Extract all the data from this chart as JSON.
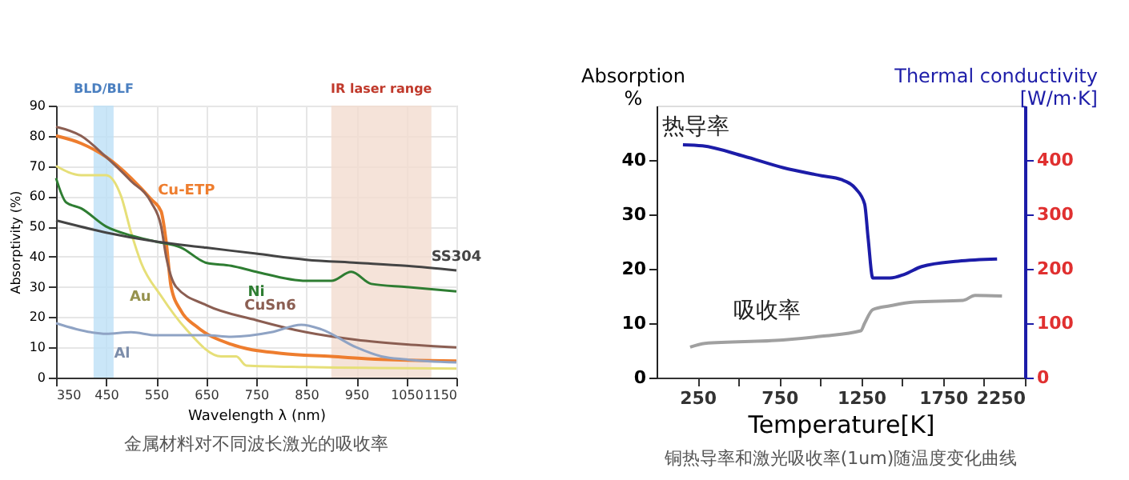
{
  "chart_data": [
    {
      "type": "line",
      "title": "金属材料对不同波长激光的吸收率",
      "xlabel": "Wavelength λ (nm)",
      "ylabel": "Absorptivity (%)",
      "xlim": [
        350,
        1150
      ],
      "xticks": [
        350,
        450,
        550,
        650,
        750,
        850,
        950,
        1050,
        1150
      ],
      "ylim": [
        0,
        90
      ],
      "yticks": [
        0,
        10,
        20,
        30,
        40,
        50,
        60,
        70,
        80,
        90
      ],
      "grid": true,
      "line_style": "solid",
      "bands": [
        {
          "axis": "x",
          "from": 425,
          "to": 465,
          "label": "BLD/BLF",
          "color": "#bde0f6"
        },
        {
          "axis": "x",
          "from": 900,
          "to": 1100,
          "label": "IR laser range",
          "color": "#f3dccf"
        }
      ],
      "series": [
        {
          "name": "Cu-ETP",
          "color": "#ee7d2e",
          "x": [
            350,
            400,
            450,
            500,
            540,
            560,
            570,
            580,
            600,
            630,
            700,
            800,
            900,
            1000,
            1150
          ],
          "values": [
            80,
            77.5,
            73,
            66,
            59,
            55,
            45,
            30,
            22,
            17,
            11,
            8,
            7,
            6,
            5.5
          ]
        },
        {
          "name": "CuSn6",
          "color": "#8b5e52",
          "x": [
            350,
            400,
            450,
            500,
            540,
            560,
            570,
            590,
            650,
            750,
            850,
            950,
            1050,
            1150
          ],
          "values": [
            83,
            80,
            73,
            65,
            58,
            50,
            40,
            30,
            24,
            19,
            15,
            12.5,
            11,
            10
          ]
        },
        {
          "name": "Au",
          "color": "#e6df78",
          "x": [
            350,
            400,
            450,
            480,
            500,
            520,
            560,
            610,
            680,
            710,
            730,
            850,
            1150
          ],
          "values": [
            70,
            67,
            67,
            60,
            48,
            38,
            27,
            16,
            7,
            7,
            4,
            3.5,
            3
          ]
        },
        {
          "name": "Ni",
          "color": "#2e7d32",
          "x": [
            350,
            370,
            400,
            450,
            500,
            550,
            600,
            650,
            700,
            750,
            850,
            900,
            940,
            980,
            1050,
            1150
          ],
          "values": [
            66,
            58,
            56,
            50,
            47,
            45,
            43,
            38,
            37,
            35,
            32,
            32,
            35,
            31,
            30,
            28.5
          ]
        },
        {
          "name": "SS304",
          "color": "#444444",
          "x": [
            350,
            450,
            550,
            650,
            750,
            850,
            950,
            1050,
            1150
          ],
          "values": [
            52,
            48,
            45,
            43,
            41,
            39,
            38,
            37,
            35.5
          ]
        },
        {
          "name": "Al",
          "color": "#8fa3c4",
          "x": [
            350,
            420,
            450,
            500,
            550,
            650,
            700,
            780,
            840,
            880,
            950,
            1000,
            1050,
            1150
          ],
          "values": [
            18,
            15,
            14.5,
            15,
            14,
            14,
            13.5,
            15,
            17.5,
            16,
            10,
            7,
            6,
            5
          ]
        }
      ]
    },
    {
      "type": "line",
      "title": "铜热导率和激光吸收率(1um)随温度变化曲线",
      "xlabel": "Temperature[K]",
      "ylabel": "Absorption\n%",
      "y2label": "Thermal conductivity\n[W/m·K]",
      "xlim": [
        0,
        2250
      ],
      "xticks": [
        250,
        {
          "value": 500,
          "label": null
        },
        750,
        {
          "value": 1000,
          "label": null
        },
        1250,
        {
          "value": 1500,
          "label": null
        },
        1750,
        {
          "value": 2000,
          "label": null
        },
        2250
      ],
      "ylim": [
        0,
        50
      ],
      "yticks": [
        0,
        10,
        20,
        30,
        40
      ],
      "y2lim": [
        0,
        500
      ],
      "y2ticks": [
        0,
        100,
        200,
        300,
        400
      ],
      "line_style": "solid",
      "series": [
        {
          "name": "热导率",
          "color": "#1c1ca8",
          "axis": "y2",
          "x": [
            161,
            280,
            533,
            771,
            1009,
            1128,
            1217,
            1271,
            1292,
            1321,
            1426,
            1515,
            1619,
            1842,
            2080
          ],
          "values": [
            428,
            426,
            407,
            386,
            371,
            364,
            347,
            319,
            257,
            183,
            183,
            190,
            204,
            214,
            218
          ]
        },
        {
          "name": "吸收率",
          "color": "#a0a0a0",
          "x": [
            205,
            295,
            771,
            1009,
            1247,
            1271,
            1321,
            1426,
            1574,
            1872,
            1946,
            2110
          ],
          "values": [
            5.6,
            6.3,
            6.9,
            7.6,
            8.6,
            10,
            12.5,
            13.2,
            13.9,
            14.2,
            15.1,
            15.0
          ]
        }
      ]
    }
  ]
}
